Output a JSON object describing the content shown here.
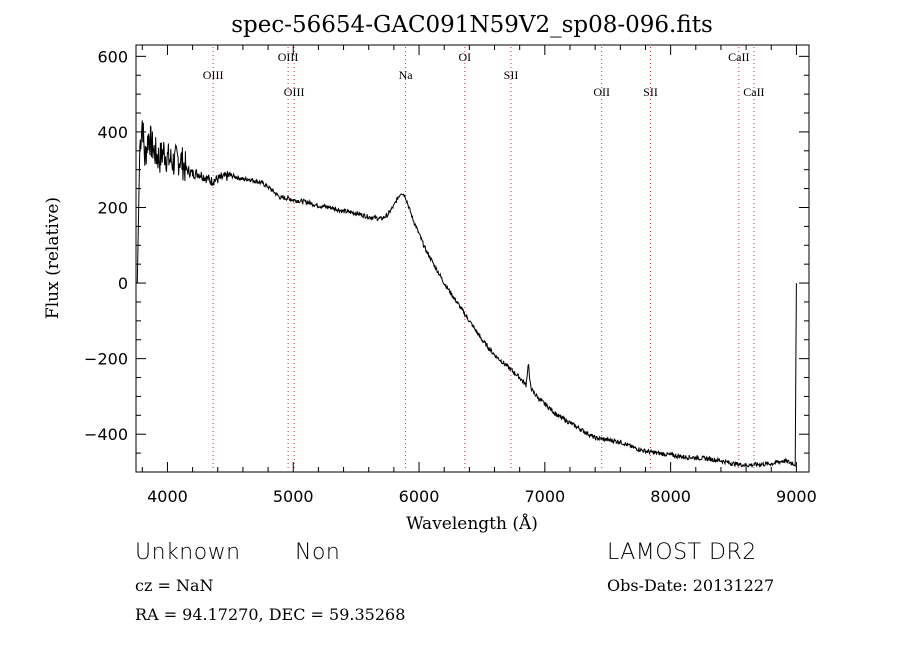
{
  "chart_data": {
    "type": "line",
    "title": "spec-56654-GAC091N59V2_sp08-096.fits",
    "xlabel": "Wavelength (Å)",
    "ylabel": "Flux (relative)",
    "xlim": [
      3750,
      9100
    ],
    "ylim": [
      -500,
      630
    ],
    "xticks": [
      4000,
      5000,
      6000,
      7000,
      8000,
      9000
    ],
    "yticks": [
      -400,
      -200,
      0,
      200,
      400,
      600
    ],
    "xtick_labels": [
      "4000",
      "5000",
      "6000",
      "7000",
      "8000",
      "9000"
    ],
    "ytick_labels": [
      "−400",
      "−200",
      "0",
      "200",
      "400",
      "600"
    ],
    "grid": false,
    "series": [
      {
        "x": [
          3760,
          3780,
          3800,
          3820,
          3850,
          3880,
          3910,
          3940,
          3970,
          4000,
          4050,
          4100,
          4150,
          4200,
          4250,
          4300,
          4350,
          4400,
          4450,
          4500,
          4550,
          4600,
          4650,
          4700,
          4750,
          4800,
          4850,
          4900,
          4950,
          5000,
          5100,
          5200,
          5300,
          5400,
          5500,
          5600,
          5700,
          5750,
          5800,
          5830,
          5860,
          5890,
          5920,
          5950,
          6000,
          6050,
          6100,
          6200,
          6300,
          6400,
          6500,
          6600,
          6700,
          6800,
          6850,
          6870,
          6880,
          6900,
          6950,
          7000,
          7100,
          7200,
          7300,
          7400,
          7500,
          7600,
          7700,
          7800,
          7900,
          8000,
          8100,
          8200,
          8300,
          8400,
          8500,
          8600,
          8700,
          8800,
          8900,
          8950,
          8990,
          9000
        ],
        "y": [
          0,
          360,
          430,
          330,
          390,
          360,
          340,
          330,
          350,
          330,
          320,
          330,
          300,
          290,
          290,
          280,
          270,
          275,
          280,
          285,
          280,
          275,
          275,
          270,
          265,
          255,
          240,
          225,
          225,
          220,
          215,
          205,
          200,
          190,
          185,
          175,
          170,
          180,
          205,
          225,
          240,
          230,
          200,
          170,
          130,
          90,
          60,
          0,
          -50,
          -100,
          -150,
          -190,
          -220,
          -250,
          -270,
          -210,
          -260,
          -285,
          -305,
          -320,
          -350,
          -370,
          -390,
          -410,
          -415,
          -420,
          -435,
          -445,
          -450,
          -455,
          -460,
          -462,
          -465,
          -470,
          -478,
          -482,
          -480,
          -478,
          -470,
          -475,
          -480,
          0
        ]
      }
    ],
    "spectral_lines": [
      {
        "label": "OIII",
        "x": 4363,
        "level": 1
      },
      {
        "label": "OIII",
        "x": 4959,
        "level": 0
      },
      {
        "label": "OIII",
        "x": 5007,
        "level": 2
      },
      {
        "label": "Na",
        "x": 5893,
        "level": 1
      },
      {
        "label": "OI",
        "x": 6364,
        "level": 0
      },
      {
        "label": "SII",
        "x": 6731,
        "level": 1
      },
      {
        "label": "OII",
        "x": 7452,
        "level": 2
      },
      {
        "label": "SII",
        "x": 7840,
        "level": 2
      },
      {
        "label": "CaII",
        "x": 8542,
        "level": 0
      },
      {
        "label": "CaII",
        "x": 8662,
        "level": 2
      }
    ]
  },
  "info": {
    "class": "Unknown",
    "subclass": "Non",
    "survey": "LAMOST DR2",
    "cz": "cz = NaN",
    "obs_date": "Obs-Date: 20131227",
    "coords": "RA =  94.17270, DEC =  59.35268"
  },
  "colors": {
    "spectrum": "#000000",
    "line_markers": "#cc3333",
    "axes": "#000000"
  }
}
